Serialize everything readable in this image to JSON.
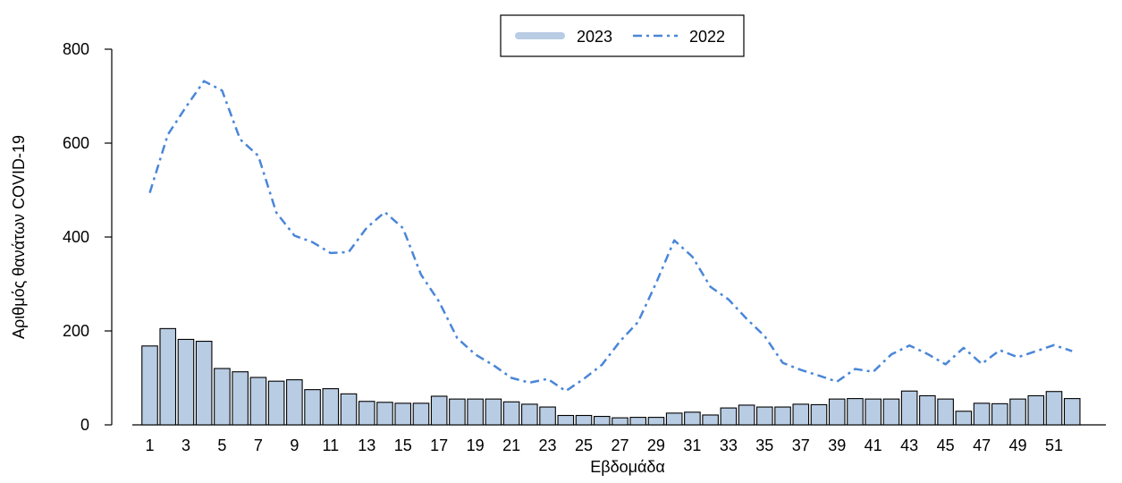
{
  "chart_data": {
    "type": "bar",
    "xlabel": "Εβδομάδα",
    "ylabel": "Αριθμός θανάτων COVID-19",
    "ylim": [
      0,
      800
    ],
    "yticks": [
      0,
      200,
      400,
      600,
      800
    ],
    "xticks": [
      1,
      3,
      5,
      7,
      9,
      11,
      13,
      15,
      17,
      19,
      21,
      23,
      25,
      27,
      29,
      31,
      33,
      35,
      37,
      39,
      41,
      43,
      45,
      47,
      49,
      51
    ],
    "grid": false,
    "legend": {
      "placement": "top-center",
      "entries": [
        "2023",
        "2022"
      ]
    },
    "x": [
      1,
      2,
      3,
      4,
      5,
      6,
      7,
      8,
      9,
      10,
      11,
      12,
      13,
      14,
      15,
      16,
      17,
      18,
      19,
      20,
      21,
      22,
      23,
      24,
      25,
      26,
      27,
      28,
      29,
      30,
      31,
      32,
      33,
      34,
      35,
      36,
      37,
      38,
      39,
      40,
      41,
      42,
      43,
      44,
      45,
      46,
      47,
      48,
      49,
      50,
      51,
      52
    ],
    "series": [
      {
        "name": "2023",
        "kind": "bar",
        "color": "#b8cce4",
        "values": [
          168,
          205,
          182,
          178,
          120,
          113,
          101,
          93,
          96,
          75,
          77,
          66,
          50,
          48,
          46,
          46,
          61,
          55,
          55,
          55,
          49,
          44,
          38,
          20,
          20,
          18,
          15,
          16,
          16,
          25,
          27,
          21,
          36,
          42,
          38,
          38,
          44,
          43,
          55,
          56,
          55,
          55,
          72,
          62,
          55,
          29,
          46,
          45,
          55,
          62,
          71,
          56
        ]
      },
      {
        "name": "2022",
        "kind": "line",
        "color": "#4a86d8",
        "values": [
          494,
          618,
          677,
          732,
          712,
          608,
          573,
          452,
          403,
          389,
          366,
          368,
          420,
          453,
          419,
          320,
          262,
          185,
          150,
          127,
          100,
          90,
          98,
          72,
          98,
          128,
          178,
          219,
          302,
          393,
          358,
          294,
          267,
          226,
          189,
          132,
          117,
          105,
          92,
          119,
          113,
          150,
          169,
          151,
          129,
          164,
          130,
          159,
          144,
          157,
          170,
          157
        ]
      }
    ]
  }
}
